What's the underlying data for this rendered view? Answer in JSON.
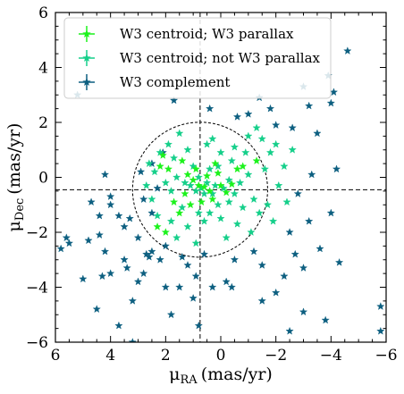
{
  "chart_data": {
    "type": "scatter",
    "xlabel": "μRA (mas/yr)",
    "ylabel": "μDec (mas/yr)",
    "xlabel_parts": {
      "symbol": "μ",
      "sub": "RA",
      "unit": "(mas/yr)"
    },
    "ylabel_parts": {
      "symbol": "μ",
      "sub": "Dec",
      "unit": "(mas/yr)"
    },
    "xlim": [
      6,
      -6
    ],
    "ylim": [
      -6,
      6
    ],
    "x_inverted": true,
    "xticks": [
      6,
      4,
      2,
      0,
      -2,
      -4,
      -6
    ],
    "yticks": [
      6,
      4,
      2,
      0,
      -2,
      -4,
      -6
    ],
    "xtick_labels": [
      "6",
      "4",
      "2",
      "0",
      "−2",
      "−4",
      "−6"
    ],
    "ytick_labels": [
      "6",
      "4",
      "2",
      "0",
      "−2",
      "−4",
      "−6"
    ],
    "legend_position": "top-left",
    "reference_lines": {
      "x": 0.75,
      "y": -0.45
    },
    "reference_circle": {
      "center": [
        0.75,
        -0.45
      ],
      "radius": 2.45
    },
    "series": [
      {
        "name": "W3 centroid; W3 parallax",
        "color": "#1cf21c",
        "marker": "star",
        "points": [
          [
            0.6,
            -0.35
          ],
          [
            0.8,
            -0.3
          ],
          [
            1.0,
            -0.1
          ],
          [
            0.4,
            -0.5
          ],
          [
            1.2,
            0.1
          ],
          [
            0.9,
            0.3
          ],
          [
            0.5,
            0.05
          ],
          [
            1.3,
            -0.6
          ],
          [
            2.1,
            0.8
          ],
          [
            1.9,
            0.3
          ],
          [
            0.1,
            0.15
          ],
          [
            -0.2,
            -0.55
          ],
          [
            -0.4,
            -0.25
          ],
          [
            0.3,
            -0.8
          ],
          [
            1.5,
            -1.3
          ],
          [
            0.2,
            0.5
          ],
          [
            1.7,
            -0.9
          ],
          [
            -0.6,
            0.3
          ],
          [
            2.2,
            0.4
          ],
          [
            1.1,
            -1.0
          ],
          [
            0.0,
            -0.3
          ],
          [
            2.3,
            -1.8
          ],
          [
            -0.8,
            0.4
          ],
          [
            1.4,
            0.6
          ],
          [
            -1.3,
            0.6
          ],
          [
            2.0,
            -2.0
          ],
          [
            0.7,
            -0.9
          ]
        ]
      },
      {
        "name": "W3 centroid; not W3 parallax",
        "color": "#15cf8a",
        "marker": "star",
        "points": [
          [
            0.5,
            -0.2
          ],
          [
            0.7,
            -0.4
          ],
          [
            0.9,
            -0.5
          ],
          [
            1.1,
            -0.3
          ],
          [
            0.3,
            -0.6
          ],
          [
            0.6,
            -0.6
          ],
          [
            0.8,
            0.0
          ],
          [
            1.3,
            -0.2
          ],
          [
            0.2,
            -0.3
          ],
          [
            -0.1,
            -0.4
          ],
          [
            -0.3,
            -0.1
          ],
          [
            1.6,
            0.0
          ],
          [
            1.8,
            -0.5
          ],
          [
            0.4,
            0.3
          ],
          [
            -0.5,
            -0.6
          ],
          [
            1.0,
            0.4
          ],
          [
            0.1,
            -1.0
          ],
          [
            1.4,
            -1.1
          ],
          [
            -0.7,
            -0.2
          ],
          [
            2.0,
            -0.2
          ],
          [
            2.4,
            0.2
          ],
          [
            -1.0,
            0.1
          ],
          [
            -1.2,
            -0.8
          ],
          [
            -1.4,
            -1.3
          ],
          [
            -1.6,
            0.3
          ],
          [
            -1.8,
            0.9
          ],
          [
            -2.0,
            1.2
          ],
          [
            -1.5,
            1.4
          ],
          [
            -1.0,
            1.5
          ],
          [
            -0.5,
            1.1
          ],
          [
            0.0,
            0.9
          ],
          [
            0.5,
            1.2
          ],
          [
            1.2,
            1.0
          ],
          [
            1.7,
            0.7
          ],
          [
            2.2,
            0.9
          ],
          [
            2.5,
            -0.8
          ],
          [
            2.3,
            -1.4
          ],
          [
            1.8,
            -1.6
          ],
          [
            1.2,
            -1.8
          ],
          [
            0.6,
            -1.6
          ],
          [
            0.0,
            -1.5
          ],
          [
            -0.6,
            -1.7
          ],
          [
            -1.1,
            -2.0
          ],
          [
            -0.2,
            -2.2
          ],
          [
            0.9,
            -2.4
          ],
          [
            -1.7,
            -1.0
          ],
          [
            -2.1,
            -0.3
          ],
          [
            -2.3,
            0.4
          ],
          [
            -0.9,
            0.9
          ],
          [
            0.3,
            1.4
          ],
          [
            1.5,
            1.6
          ],
          [
            2.6,
            0.5
          ],
          [
            -0.3,
            -0.9
          ],
          [
            0.8,
            -1.3
          ],
          [
            1.6,
            -2.2
          ],
          [
            -1.9,
            -1.6
          ],
          [
            -2.4,
            -0.9
          ],
          [
            1.9,
            1.2
          ],
          [
            -1.3,
            1.8
          ],
          [
            0.1,
            0.4
          ],
          [
            0.4,
            -1.3
          ],
          [
            -0.8,
            -1.1
          ],
          [
            2.7,
            -0.3
          ],
          [
            -2.6,
            1.0
          ],
          [
            -0.4,
            0.6
          ]
        ]
      },
      {
        "name": "W3 complement",
        "color": "#0d5f80",
        "marker": "star",
        "points": [
          [
            -4.6,
            4.6
          ],
          [
            -4.1,
            3.1
          ],
          [
            -3.9,
            3.7
          ],
          [
            -3.0,
            3.3
          ],
          [
            -3.2,
            2.6
          ],
          [
            -4.0,
            2.7
          ],
          [
            -3.5,
            1.6
          ],
          [
            -2.6,
            1.8
          ],
          [
            -4.2,
            0.3
          ],
          [
            -3.3,
            0.1
          ],
          [
            -2.8,
            -0.6
          ],
          [
            -4.0,
            -1.3
          ],
          [
            -3.2,
            -1.6
          ],
          [
            -2.5,
            -2.0
          ],
          [
            -3.6,
            -2.6
          ],
          [
            -4.3,
            -3.1
          ],
          [
            -3.0,
            -3.3
          ],
          [
            -2.3,
            -3.6
          ],
          [
            -3.8,
            -5.2
          ],
          [
            -5.8,
            -4.7
          ],
          [
            -5.8,
            -5.6
          ],
          [
            -2.5,
            -5.6
          ],
          [
            -2.0,
            1.9
          ],
          [
            -1.8,
            2.5
          ],
          [
            -0.6,
            2.2
          ],
          [
            0.4,
            2.5
          ],
          [
            1.7,
            2.8
          ],
          [
            2.1,
            0.9
          ],
          [
            2.3,
            -0.4
          ],
          [
            2.8,
            -0.8
          ],
          [
            2.5,
            -1.3
          ],
          [
            2.5,
            -2.7
          ],
          [
            2.2,
            -3.0
          ],
          [
            2.0,
            -2.5
          ],
          [
            3.0,
            -2.2
          ],
          [
            3.3,
            -1.5
          ],
          [
            3.7,
            -1.4
          ],
          [
            4.0,
            -1.0
          ],
          [
            4.4,
            -1.4
          ],
          [
            4.7,
            -0.9
          ],
          [
            4.4,
            -2.1
          ],
          [
            4.2,
            -2.7
          ],
          [
            4.0,
            -3.5
          ],
          [
            4.8,
            -2.3
          ],
          [
            5.0,
            -3.7
          ],
          [
            5.5,
            -2.4
          ],
          [
            5.8,
            -2.6
          ],
          [
            5.6,
            -2.2
          ],
          [
            3.5,
            -3.0
          ],
          [
            3.4,
            -3.3
          ],
          [
            3.0,
            -3.8
          ],
          [
            2.7,
            -2.8
          ],
          [
            2.0,
            -4.0
          ],
          [
            1.8,
            -5.0
          ],
          [
            1.5,
            -4.0
          ],
          [
            0.8,
            -5.4
          ],
          [
            3.2,
            -4.5
          ],
          [
            2.8,
            -3.5
          ],
          [
            4.5,
            -4.8
          ],
          [
            3.7,
            -5.4
          ],
          [
            3.2,
            -6.0
          ],
          [
            0.9,
            -3.6
          ],
          [
            -0.5,
            -3.0
          ],
          [
            -1.5,
            -3.2
          ],
          [
            -2.0,
            -4.2
          ],
          [
            -1.5,
            -4.5
          ],
          [
            -0.4,
            -4.0
          ],
          [
            0.3,
            -4.0
          ],
          [
            1.2,
            -3.2
          ],
          [
            2.5,
            0.5
          ],
          [
            4.2,
            0.1
          ],
          [
            2.9,
            0.2
          ],
          [
            4.0,
            -0.7
          ],
          [
            1.4,
            -2.9
          ],
          [
            2.6,
            -2.9
          ],
          [
            1.0,
            -4.4
          ],
          [
            0.6,
            -2.8
          ],
          [
            -0.2,
            -3.8
          ],
          [
            -1.2,
            -2.7
          ],
          [
            -2.7,
            -2.8
          ],
          [
            -1.0,
            2.3
          ],
          [
            3.5,
            -1.8
          ],
          [
            5.2,
            3.0
          ],
          [
            -1.4,
            2.9
          ],
          [
            -3.0,
            -4.9
          ],
          [
            4.3,
            -3.6
          ]
        ]
      }
    ]
  }
}
